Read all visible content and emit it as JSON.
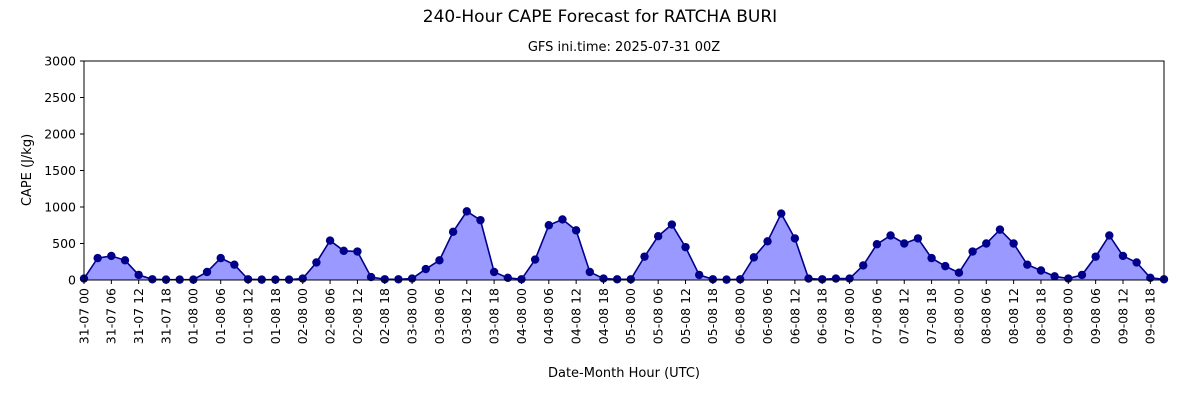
{
  "chart_data": {
    "type": "area",
    "title": "240-Hour CAPE Forecast for RATCHA BURI",
    "subtitle": "GFS ini.time: 2025-07-31 00Z",
    "xlabel": "Date-Month Hour (UTC)",
    "ylabel": "CAPE (J/kg)",
    "ylim": [
      0,
      3000
    ],
    "yticks": [
      0,
      500,
      1000,
      1500,
      2000,
      2500,
      3000
    ],
    "grid": false,
    "series_color": "#00008b",
    "fill_color": "#9999ff",
    "x_step_hours": 3,
    "xtick_every": 2,
    "xtick_labels": [
      "31-07 00",
      "31-07 06",
      "31-07 12",
      "31-07 18",
      "01-08 00",
      "01-08 06",
      "01-08 12",
      "01-08 18",
      "02-08 00",
      "02-08 06",
      "02-08 12",
      "02-08 18",
      "03-08 00",
      "03-08 06",
      "03-08 12",
      "03-08 18",
      "04-08 00",
      "04-08 06",
      "04-08 12",
      "04-08 18",
      "05-08 00",
      "05-08 06",
      "05-08 12",
      "05-08 18",
      "06-08 00",
      "06-08 06",
      "06-08 12",
      "06-08 18",
      "07-08 00",
      "07-08 06",
      "07-08 12",
      "07-08 18",
      "08-08 00",
      "08-08 06",
      "08-08 12",
      "08-08 18",
      "09-08 00",
      "09-08 06",
      "09-08 12",
      "09-08 18"
    ],
    "values": [
      20,
      300,
      330,
      270,
      70,
      10,
      5,
      5,
      5,
      110,
      300,
      210,
      10,
      5,
      5,
      5,
      20,
      240,
      540,
      400,
      390,
      40,
      10,
      10,
      20,
      150,
      270,
      660,
      940,
      820,
      110,
      30,
      10,
      280,
      750,
      830,
      680,
      110,
      20,
      10,
      10,
      320,
      600,
      760,
      450,
      70,
      10,
      5,
      10,
      310,
      530,
      910,
      570,
      20,
      10,
      20,
      20,
      200,
      490,
      610,
      500,
      570,
      300,
      190,
      100,
      390,
      500,
      690,
      500,
      210,
      130,
      50,
      20,
      70,
      320,
      610,
      330,
      240,
      30,
      10
    ]
  }
}
